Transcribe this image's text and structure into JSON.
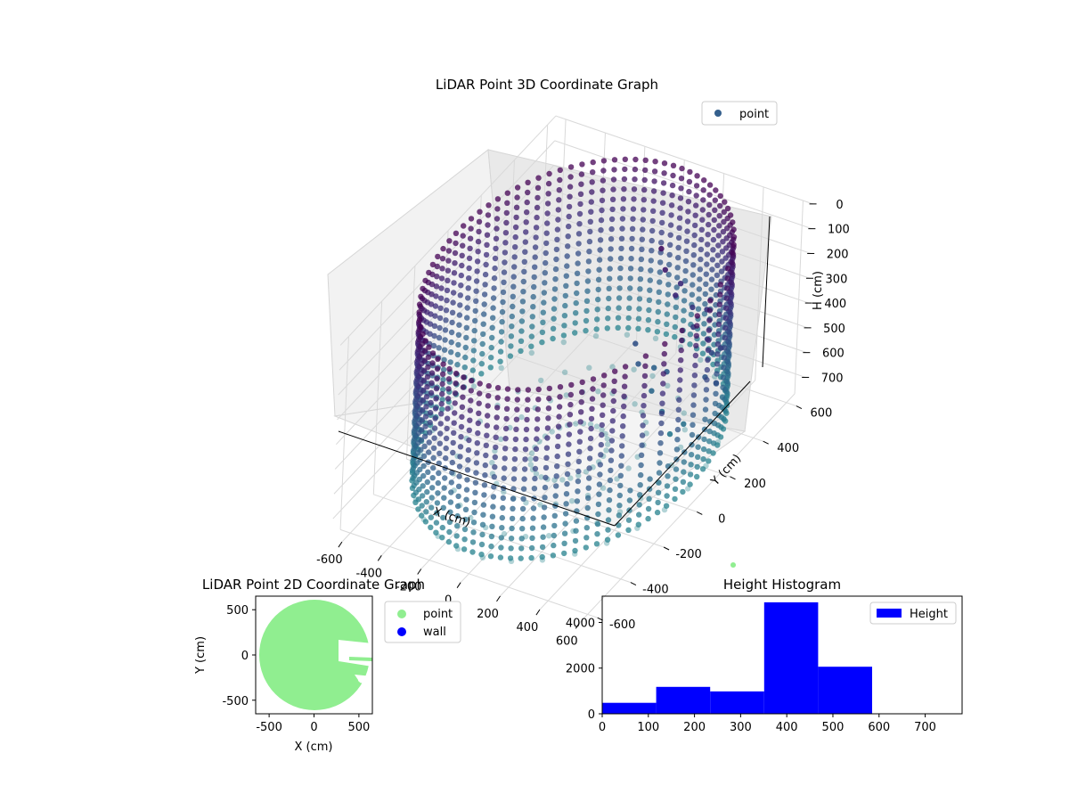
{
  "chart_data": [
    {
      "type": "scatter3d",
      "title": "LiDAR Point 3D Coordinate Graph",
      "xlabel": "X (cm)",
      "ylabel": "Y (cm)",
      "zlabel": "H (cm)",
      "xticks": [
        "-600",
        "-400",
        "-200",
        "0",
        "200",
        "400",
        "600"
      ],
      "yticks": [
        "-600",
        "-400",
        "-200",
        "0",
        "200",
        "400",
        "600"
      ],
      "zticks": [
        "0",
        "100",
        "200",
        "300",
        "400",
        "500",
        "600",
        "700"
      ],
      "xlim": [
        -650,
        650
      ],
      "ylim": [
        -650,
        650
      ],
      "zlim": [
        0,
        780
      ],
      "z_inverted": true,
      "grid": true,
      "legend": {
        "placement": "top-right",
        "entries": [
          "point"
        ]
      },
      "colormap": "viridis",
      "series": [
        {
          "name": "point",
          "shape": "cylindrical wall of points around the scanner",
          "radius": 610,
          "h_range": [
            0,
            780
          ],
          "color": "#35608d",
          "cluster_points": [
            [
              180,
              300,
              60
            ],
            [
              220,
              280,
              120
            ],
            [
              260,
              330,
              200
            ],
            [
              300,
              250,
              180
            ],
            [
              340,
              310,
              260
            ],
            [
              380,
              270,
              300
            ],
            [
              420,
              300,
              240
            ],
            [
              460,
              260,
              320
            ],
            [
              500,
              240,
              350
            ],
            [
              150,
              200,
              380
            ],
            [
              200,
              160,
              420
            ],
            [
              240,
              210,
              460
            ],
            [
              280,
              150,
              500
            ],
            [
              320,
              190,
              440
            ],
            [
              360,
              120,
              540
            ],
            [
              520,
              180,
              400
            ],
            [
              560,
              220,
              300
            ],
            [
              600,
              150,
              380
            ],
            [
              470,
              120,
              560
            ],
            [
              420,
              100,
              600
            ]
          ]
        }
      ]
    },
    {
      "type": "scatter",
      "title": "LiDAR Point 2D Coordinate Graph",
      "xlabel": "X (cm)",
      "ylabel": "Y (cm)",
      "xticks": [
        "-500",
        "0",
        "500"
      ],
      "yticks": [
        "-500",
        "0",
        "500"
      ],
      "xlim": [
        -650,
        650
      ],
      "ylim": [
        -650,
        650
      ],
      "legend": {
        "placement": "outside-right",
        "entries": [
          "point",
          "wall"
        ]
      },
      "series": [
        {
          "name": "point",
          "color": "#90ee90",
          "shape": "filled disc",
          "center": [
            0,
            0
          ],
          "radius": 610
        },
        {
          "name": "wall",
          "color": "#0000ff"
        }
      ]
    },
    {
      "type": "bar",
      "title": "Height Histogram",
      "xlabel": "",
      "ylabel": "",
      "xticks": [
        "0",
        "100",
        "200",
        "300",
        "400",
        "500",
        "600",
        "700"
      ],
      "yticks": [
        "0",
        "2000",
        "4000"
      ],
      "xlim": [
        0,
        780
      ],
      "ylim": [
        0,
        5150
      ],
      "legend": {
        "placement": "top-right",
        "entries": [
          "Height"
        ]
      },
      "series": [
        {
          "name": "Height",
          "color": "#0000ff",
          "bins": [
            0,
            117,
            234,
            351,
            468,
            585,
            702,
            780
          ],
          "values": [
            480,
            1180,
            980,
            4880,
            2060,
            0,
            0
          ]
        }
      ]
    }
  ]
}
